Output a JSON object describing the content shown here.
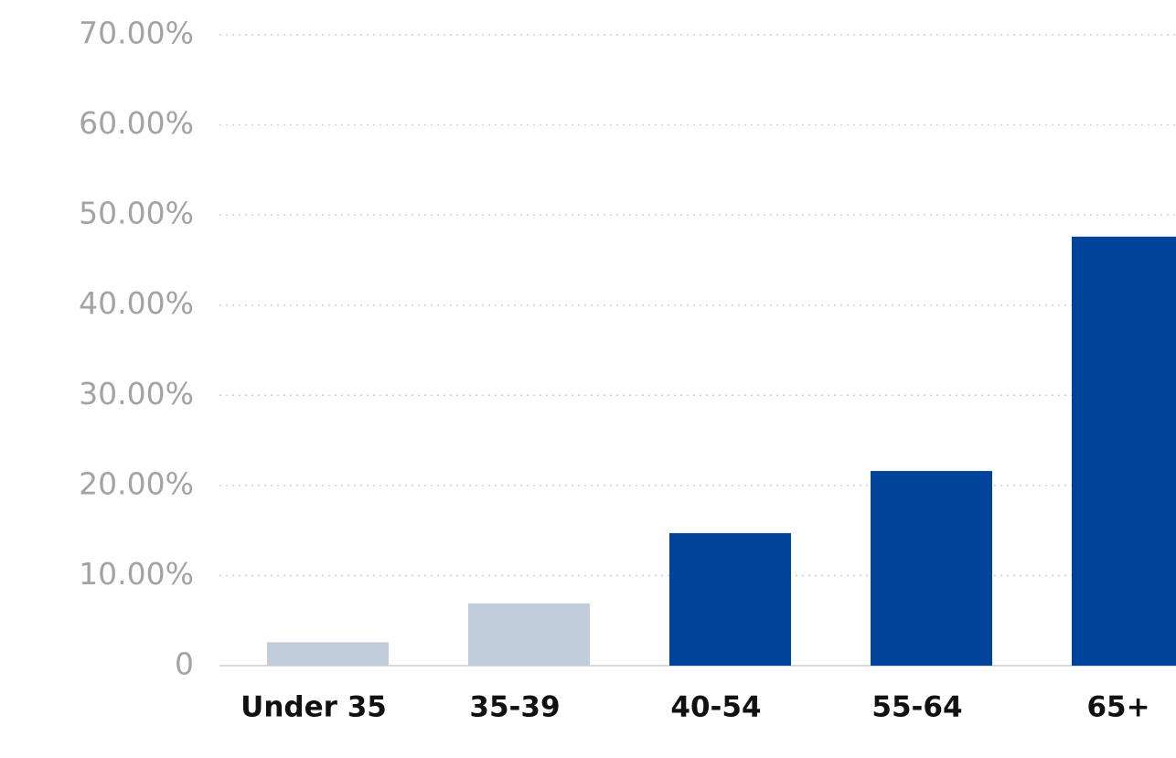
{
  "chart_data": {
    "type": "bar",
    "categories": [
      "Under 35",
      "35-39",
      "40-54",
      "55-64",
      "65+"
    ],
    "values": [
      2.6,
      6.9,
      14.7,
      21.6,
      47.6
    ],
    "colors": [
      "#c1cddb",
      "#c1cddb",
      "#00439a",
      "#00439a",
      "#00439a"
    ],
    "ylim": [
      0,
      70
    ],
    "yticks": [
      0,
      {
        "value": 10,
        "label": "10.00%"
      },
      {
        "value": 20,
        "label": "20.00%"
      },
      {
        "value": 30,
        "label": "30.00%"
      },
      {
        "value": 40,
        "label": "40.00%"
      },
      {
        "value": 50,
        "label": "50.00%"
      },
      {
        "value": 60,
        "label": "60.00%"
      },
      {
        "value": 70,
        "label": "70.00%"
      }
    ],
    "grid": true
  }
}
